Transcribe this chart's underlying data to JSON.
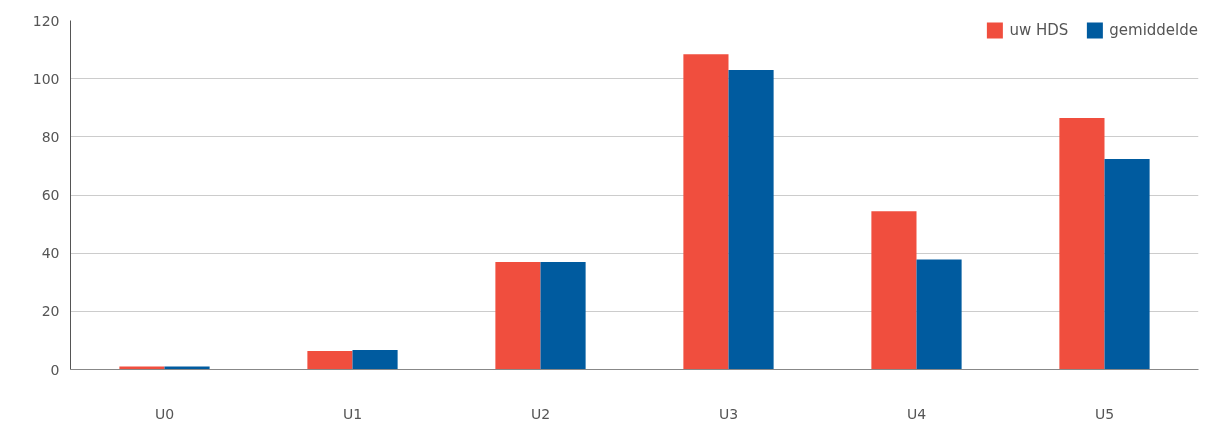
{
  "chart_data": {
    "type": "bar",
    "categories": [
      "U0",
      "U1",
      "U2",
      "U3",
      "U4",
      "U5"
    ],
    "series": [
      {
        "name": "uw HDS",
        "color": "#f04e3e",
        "values": [
          1,
          6.4,
          37,
          108.4,
          54.4,
          86.5
        ]
      },
      {
        "name": "gemiddelde",
        "color": "#005b9f",
        "values": [
          1,
          6.7,
          37,
          103,
          37.8,
          72.4
        ]
      }
    ],
    "ylim": [
      0,
      120
    ],
    "yticks": [
      0,
      20,
      40,
      60,
      80,
      100,
      120
    ],
    "grid": "y",
    "legend": "top right"
  }
}
